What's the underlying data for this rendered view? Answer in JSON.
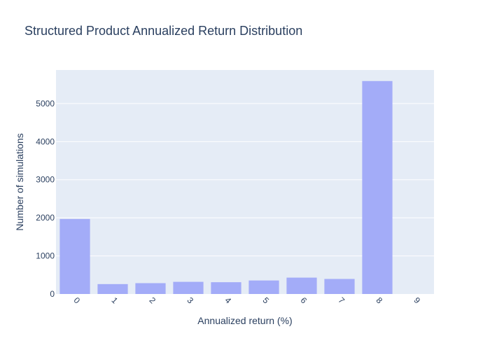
{
  "chart_data": {
    "type": "bar",
    "title": "Structured Product Annualized Return Distribution",
    "xlabel": "Annualized return (%)",
    "ylabel": "Number of simulations",
    "categories": [
      "0",
      "1",
      "2",
      "3",
      "4",
      "5",
      "6",
      "7",
      "8",
      "9"
    ],
    "values": [
      1970,
      260,
      285,
      320,
      310,
      355,
      430,
      395,
      5590,
      0
    ],
    "yticks": [
      "0",
      "1000",
      "2000",
      "3000",
      "4000",
      "5000"
    ],
    "ylim": [
      0,
      5880
    ],
    "grid": true,
    "legend": "none",
    "colors": {
      "bar": "#a3acf8",
      "plot_background": "#e5ecf6",
      "grid": "#ffffff",
      "text": "#2a3f5f"
    }
  }
}
